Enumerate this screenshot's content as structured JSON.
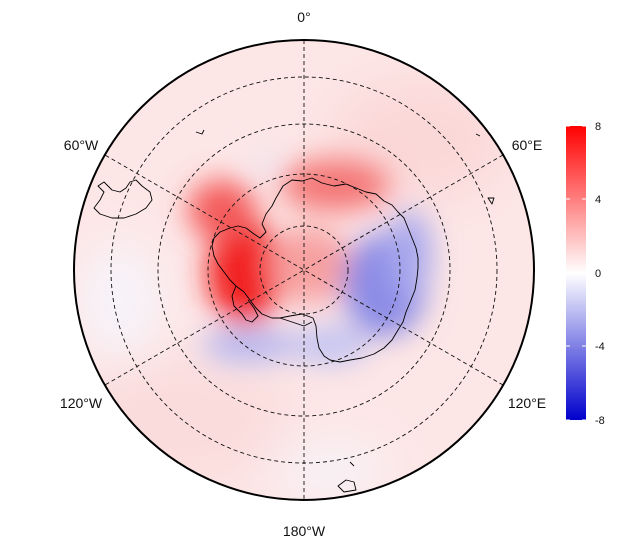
{
  "map": {
    "projection": "south-polar-stereographic",
    "longitude_labels": {
      "top": "0°",
      "upper_right": "60°E",
      "lower_right": "120°E",
      "bottom": "180°W",
      "lower_left": "120°W",
      "upper_left": "60°W"
    },
    "graticule": "dashed",
    "field_anomalies": [
      {
        "region": "Bellingshausen / Antarctic Peninsula sector",
        "sign": "positive",
        "strength": "strong"
      },
      {
        "region": "Weddell Sea sector",
        "sign": "positive",
        "strength": "moderate"
      },
      {
        "region": "East Antarctica interior",
        "sign": "positive",
        "strength": "weak"
      },
      {
        "region": "Indian Ocean / Wilkes Land sector",
        "sign": "negative",
        "strength": "moderate"
      },
      {
        "region": "Ross Sea sector",
        "sign": "negative",
        "strength": "weak"
      },
      {
        "region": "Amundsen Sea sector",
        "sign": "negative",
        "strength": "weak"
      }
    ]
  },
  "colorbar": {
    "colors": {
      "min": "#0000cc",
      "mid": "#ffffff",
      "max": "#ff0000"
    },
    "range": [
      -8,
      8
    ],
    "ticks": [
      "8",
      "4",
      "0",
      "-4",
      "-8"
    ]
  }
}
